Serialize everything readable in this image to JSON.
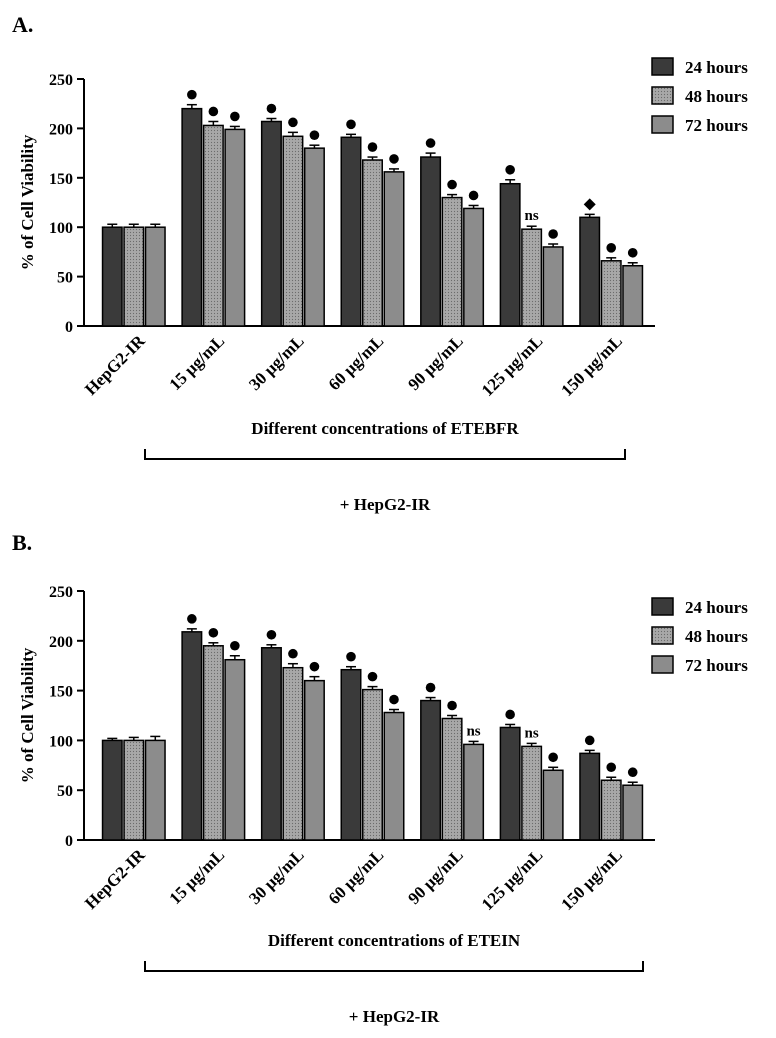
{
  "legend": {
    "labels": [
      "24 hours",
      "48 hours",
      "72 hours"
    ],
    "placement": "top-right"
  },
  "colors": {
    "series_24h": "#3a3a3a",
    "series_48h": "#a8a8a8",
    "series_72h": "#8c8c8c",
    "axis": "#000000"
  },
  "chart_data": [
    {
      "type": "bar",
      "panel_label": "A.",
      "ylabel": "% of Cell Viability",
      "ylim": [
        0,
        250
      ],
      "yticks": [
        0,
        50,
        100,
        150,
        200,
        250
      ],
      "categories": [
        "HepG2-IR",
        "15 μg/mL",
        "30 μg/mL",
        "60 μg/mL",
        "90 μg/mL",
        "125 μg/mL",
        "150 μg/mL"
      ],
      "bracket_label": "Different concentrations of ETEBFR",
      "footer_label": "+ HepG2-IR",
      "series": [
        {
          "name": "24 hours",
          "values": [
            100,
            220,
            207,
            191,
            171,
            144,
            110
          ],
          "errors": [
            3,
            4,
            3,
            3,
            4,
            4,
            3
          ]
        },
        {
          "name": "48 hours",
          "values": [
            100,
            203,
            192,
            168,
            130,
            98,
            66
          ],
          "errors": [
            3,
            4,
            4,
            3,
            3,
            3,
            3
          ]
        },
        {
          "name": "72 hours",
          "values": [
            100,
            199,
            180,
            156,
            119,
            80,
            61
          ],
          "errors": [
            3,
            3,
            3,
            3,
            3,
            3,
            3
          ]
        }
      ],
      "significance": [
        [
          "",
          "",
          ""
        ],
        [
          "●",
          "●",
          "●"
        ],
        [
          "●",
          "●",
          "●"
        ],
        [
          "●",
          "●",
          "●"
        ],
        [
          "●",
          "●",
          "●"
        ],
        [
          "●",
          "ns",
          "●"
        ],
        [
          "◆",
          "●",
          "●"
        ]
      ],
      "grid": false
    },
    {
      "type": "bar",
      "panel_label": "B.",
      "ylabel": "% of Cell Viability",
      "ylim": [
        0,
        250
      ],
      "yticks": [
        0,
        50,
        100,
        150,
        200,
        250
      ],
      "categories": [
        "HepG2-IR",
        "15 μg/mL",
        "30 μg/mL",
        "60 μg/mL",
        "90 μg/mL",
        "125 μg/mL",
        "150 μg/mL"
      ],
      "bracket_label": "Different concentrations of ETEIN",
      "footer_label": "+ HepG2-IR",
      "series": [
        {
          "name": "24 hours",
          "values": [
            100,
            209,
            193,
            171,
            140,
            113,
            87
          ],
          "errors": [
            2,
            3,
            3,
            3,
            3,
            3,
            3
          ]
        },
        {
          "name": "48 hours",
          "values": [
            100,
            195,
            173,
            151,
            122,
            94,
            60
          ],
          "errors": [
            3,
            3,
            4,
            3,
            3,
            3,
            3
          ]
        },
        {
          "name": "72 hours",
          "values": [
            100,
            181,
            160,
            128,
            96,
            70,
            55
          ],
          "errors": [
            4,
            4,
            4,
            3,
            3,
            3,
            3
          ]
        }
      ],
      "significance": [
        [
          "",
          "",
          ""
        ],
        [
          "●",
          "●",
          "●"
        ],
        [
          "●",
          "●",
          "●"
        ],
        [
          "●",
          "●",
          "●"
        ],
        [
          "●",
          "●",
          "ns"
        ],
        [
          "●",
          "ns",
          "●"
        ],
        [
          "●",
          "●",
          "●"
        ]
      ],
      "grid": false
    }
  ]
}
